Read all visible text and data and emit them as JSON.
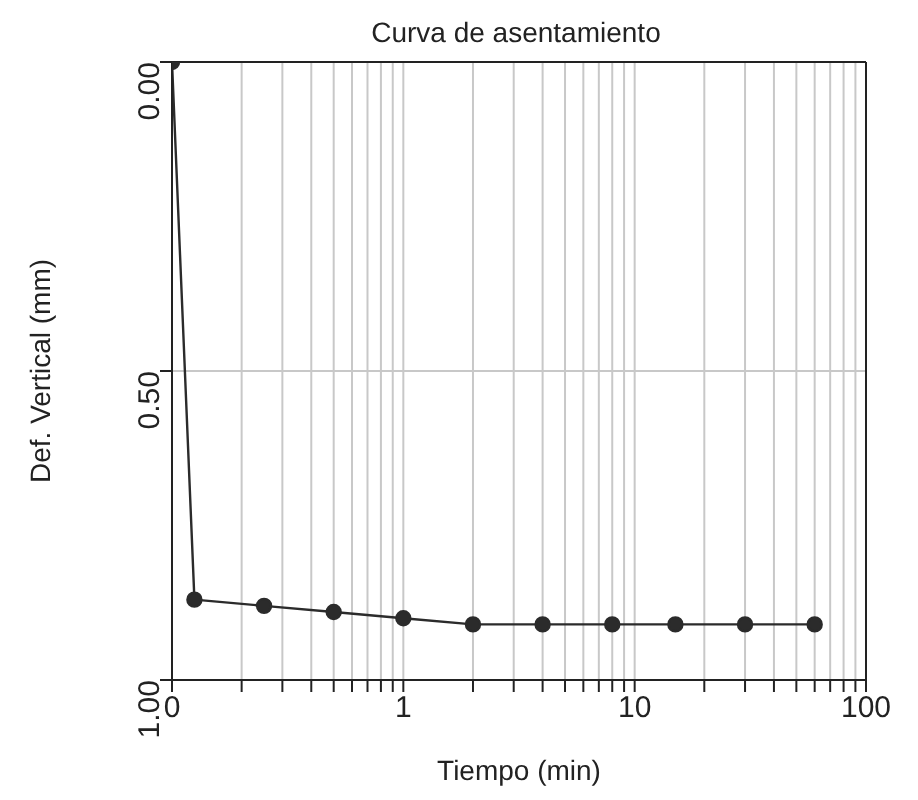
{
  "chart_data": {
    "type": "line",
    "title": "Curva de asentamiento",
    "xlabel": "Tiempo (min)",
    "ylabel": "Def. Vertical (mm)",
    "x": [
      0.1,
      0.125,
      0.25,
      0.5,
      1,
      2,
      4,
      8,
      15,
      30,
      60
    ],
    "series": [
      {
        "color": "#2b2b2b",
        "values": [
          0,
          0.87,
          0.88,
          0.89,
          0.9,
          0.91,
          0.91,
          0.91,
          0.91,
          0.91,
          0.91
        ]
      }
    ],
    "log": "x",
    "xlim": [
      0.1,
      100
    ],
    "xticks": [
      {
        "value": 0.1,
        "label": "0"
      },
      {
        "value": 0.2,
        "label": null
      },
      {
        "value": 0.3,
        "label": null
      },
      {
        "value": 0.4,
        "label": null
      },
      {
        "value": 0.5,
        "label": null
      },
      {
        "value": 0.6,
        "label": null
      },
      {
        "value": 0.7,
        "label": null
      },
      {
        "value": 0.8,
        "label": null
      },
      {
        "value": 0.9,
        "label": null
      },
      1,
      {
        "value": 2,
        "label": null
      },
      {
        "value": 3,
        "label": null
      },
      {
        "value": 4,
        "label": null
      },
      {
        "value": 5,
        "label": null
      },
      {
        "value": 6,
        "label": null
      },
      {
        "value": 7,
        "label": null
      },
      {
        "value": 8,
        "label": null
      },
      {
        "value": 9,
        "label": null
      },
      10,
      {
        "value": 20,
        "label": null
      },
      {
        "value": 30,
        "label": null
      },
      {
        "value": 40,
        "label": null
      },
      {
        "value": 50,
        "label": null
      },
      {
        "value": 60,
        "label": null
      },
      {
        "value": 70,
        "label": null
      },
      {
        "value": 80,
        "label": null
      },
      {
        "value": 90,
        "label": null
      },
      100
    ],
    "ylim": [
      1,
      0
    ],
    "yticks": [
      {
        "value": 0,
        "label": "0.00"
      },
      {
        "value": 0.5,
        "label": "0.50"
      },
      {
        "value": 1,
        "label": "1.00"
      }
    ],
    "grid": true,
    "marker": "circle",
    "line_style": "solid"
  }
}
